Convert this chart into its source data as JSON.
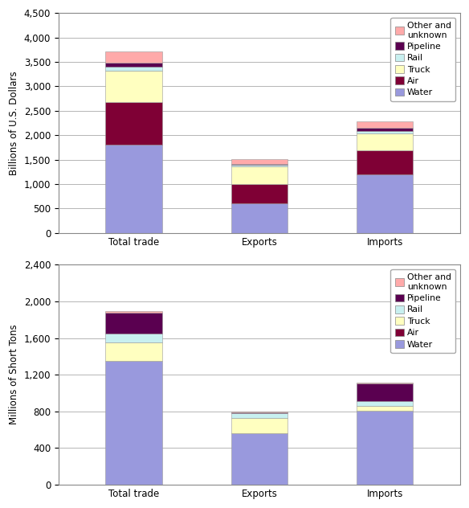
{
  "chart1": {
    "ylabel": "Billions of U.S. Dollars",
    "ylim": [
      0,
      4500
    ],
    "yticks": [
      0,
      500,
      1000,
      1500,
      2000,
      2500,
      3000,
      3500,
      4000,
      4500
    ],
    "categories": [
      "Total trade",
      "Exports",
      "Imports"
    ],
    "series": {
      "Water": [
        1800,
        600,
        1190
      ],
      "Air": [
        870,
        395,
        500
      ],
      "Truck": [
        650,
        370,
        340
      ],
      "Rail": [
        80,
        25,
        55
      ],
      "Pipeline": [
        80,
        15,
        65
      ],
      "Other and\nunknown": [
        240,
        110,
        130
      ]
    }
  },
  "chart2": {
    "ylabel": "Millions of Short Tons",
    "ylim": [
      0,
      2400
    ],
    "yticks": [
      0,
      400,
      800,
      1200,
      1600,
      2000,
      2400
    ],
    "categories": [
      "Total trade",
      "Exports",
      "Imports"
    ],
    "series": {
      "Water": [
        1350,
        560,
        810
      ],
      "Air": [
        3,
        2,
        1
      ],
      "Truck": [
        200,
        165,
        50
      ],
      "Rail": [
        95,
        50,
        55
      ],
      "Pipeline": [
        230,
        15,
        185
      ],
      "Other and\nunknown": [
        20,
        8,
        12
      ]
    }
  },
  "colors": {
    "Water": "#9999dd",
    "Air": "#7f0035",
    "Truck": "#ffffc0",
    "Rail": "#c8f0f0",
    "Pipeline": "#5a0050",
    "Other and\nunknown": "#ffaaaa"
  },
  "draw_order": [
    "Water",
    "Air",
    "Truck",
    "Rail",
    "Pipeline",
    "Other and\nunknown"
  ],
  "legend_order": [
    "Other and\nunknown",
    "Pipeline",
    "Rail",
    "Truck",
    "Air",
    "Water"
  ],
  "bar_width": 0.45,
  "background_color": "#ffffff",
  "font_size": 8.5,
  "legend_fontsize": 7.8
}
